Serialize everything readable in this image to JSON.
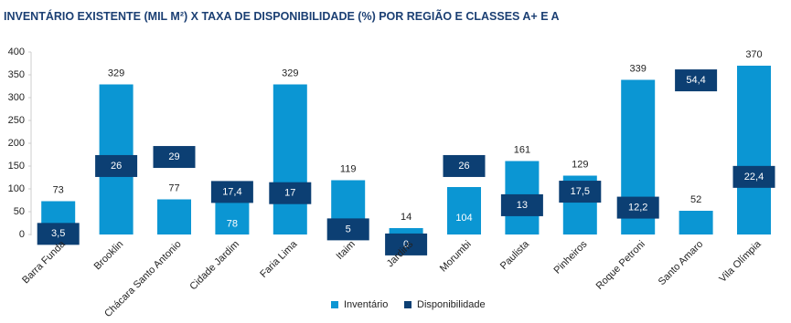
{
  "chart_data": {
    "type": "bar",
    "title": "INVENTÁRIO EXISTENTE (MIL M²) X TAXA DE DISPONIBILIDADE (%) POR REGIÃO E CLASSES A+ E A",
    "categories": [
      "Barra Funda",
      "Brooklin",
      "Chácara Santo Antonio",
      "Cidade Jardim",
      "Faria Lima",
      "Itaim",
      "Jardins",
      "Morumbi",
      "Paulista",
      "Pinheiros",
      "Roque Petroni",
      "Santo Amaro",
      "Vila Olímpia"
    ],
    "series": [
      {
        "name": "Inventário",
        "color": "#0b96d3",
        "values": [
          73,
          329,
          77,
          78,
          329,
          119,
          14,
          104,
          161,
          129,
          339,
          52,
          370
        ]
      },
      {
        "name": "Disponibilidade",
        "color": "#0c3f73",
        "axis": "y2",
        "values": [
          3.5,
          26,
          29,
          17.4,
          17,
          5,
          0,
          26,
          13,
          17.5,
          12.2,
          54.4,
          22.4
        ],
        "value_labels": [
          "3,5",
          "26",
          "29",
          "17,4",
          "17",
          "5",
          "0",
          "26",
          "13",
          "17,5",
          "12,2",
          "54,4",
          "22,4"
        ]
      }
    ],
    "ylim": [
      0,
      400
    ],
    "yticks": [
      0,
      50,
      100,
      150,
      200,
      250,
      300,
      350,
      400
    ],
    "y2lim": [
      3.3,
      63.8
    ],
    "grid": false
  }
}
